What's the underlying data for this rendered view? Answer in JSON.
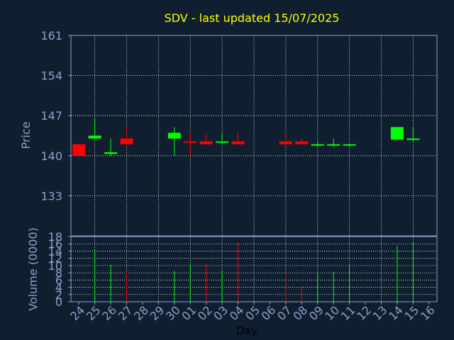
{
  "chart_data": [
    {
      "type": "candlestick",
      "title": "SDV - last updated 15/07/2025",
      "ylabel": "Price",
      "ylim": [
        126,
        161
      ],
      "y_ticks": [
        133,
        140,
        147,
        154,
        161
      ],
      "grid": true,
      "categories": [
        "24",
        "25",
        "26",
        "27",
        "28",
        "29",
        "30",
        "01",
        "02",
        "03",
        "04",
        "05",
        "06",
        "07",
        "08",
        "09",
        "10",
        "11",
        "12",
        "13",
        "14",
        "15",
        "16"
      ],
      "candles": [
        {
          "day": "24",
          "open": 142.0,
          "high": 142.0,
          "low": 140.0,
          "close": 140.0
        },
        {
          "day": "25",
          "open": 143.0,
          "high": 146.5,
          "low": 143.0,
          "close": 143.5
        },
        {
          "day": "26",
          "open": 140.3,
          "high": 143.0,
          "low": 140.0,
          "close": 140.6
        },
        {
          "day": "27",
          "open": 143.0,
          "high": 145.0,
          "low": 142.0,
          "close": 142.0
        },
        {
          "day": "30",
          "open": 143.0,
          "high": 145.0,
          "low": 140.0,
          "close": 144.0
        },
        {
          "day": "01",
          "open": 142.5,
          "high": 144.0,
          "low": 140.0,
          "close": 142.3
        },
        {
          "day": "02",
          "open": 142.5,
          "high": 144.0,
          "low": 142.0,
          "close": 142.0
        },
        {
          "day": "03",
          "open": 142.3,
          "high": 144.0,
          "low": 142.0,
          "close": 142.5
        },
        {
          "day": "04",
          "open": 142.5,
          "high": 144.0,
          "low": 142.0,
          "close": 142.0
        },
        {
          "day": "07",
          "open": 142.5,
          "high": 144.0,
          "low": 142.0,
          "close": 142.0
        },
        {
          "day": "08",
          "open": 142.5,
          "high": 143.0,
          "low": 142.0,
          "close": 142.0
        },
        {
          "day": "09",
          "open": 141.8,
          "high": 142.5,
          "low": 141.5,
          "close": 142.0
        },
        {
          "day": "10",
          "open": 141.8,
          "high": 143.0,
          "low": 141.5,
          "close": 142.0
        },
        {
          "day": "11",
          "open": 141.8,
          "high": 142.0,
          "low": 141.5,
          "close": 142.0
        },
        {
          "day": "14",
          "open": 142.8,
          "high": 145.0,
          "low": 142.8,
          "close": 145.0
        },
        {
          "day": "15",
          "open": 142.8,
          "high": 145.0,
          "low": 142.5,
          "close": 143.0
        }
      ],
      "colors": {
        "up": "#00ff00",
        "down": "#ff0000",
        "background": "#0f1f30",
        "grid": "#ffffff",
        "axis": "#8ca0c8",
        "title": "#ffff00"
      }
    },
    {
      "type": "bar",
      "xlabel": "Day",
      "ylabel": "Volume (0000)",
      "ylim": [
        0,
        18
      ],
      "y_ticks": [
        0,
        2,
        4,
        6,
        8,
        10,
        12,
        14,
        16,
        18
      ],
      "grid": true,
      "categories": [
        "24",
        "25",
        "26",
        "27",
        "28",
        "29",
        "30",
        "01",
        "02",
        "03",
        "04",
        "05",
        "06",
        "07",
        "08",
        "09",
        "10",
        "11",
        "12",
        "13",
        "14",
        "15",
        "16"
      ],
      "volumes": [
        {
          "day": "25",
          "value": 14.5,
          "direction": "up"
        },
        {
          "day": "26",
          "value": 10.2,
          "direction": "up"
        },
        {
          "day": "27",
          "value": 8.0,
          "direction": "down"
        },
        {
          "day": "30",
          "value": 8.5,
          "direction": "up"
        },
        {
          "day": "01",
          "value": 10.5,
          "direction": "up"
        },
        {
          "day": "02",
          "value": 10.0,
          "direction": "down"
        },
        {
          "day": "03",
          "value": 8.7,
          "direction": "up"
        },
        {
          "day": "04",
          "value": 16.5,
          "direction": "down"
        },
        {
          "day": "07",
          "value": 7.5,
          "direction": "down"
        },
        {
          "day": "08",
          "value": 4.3,
          "direction": "down"
        },
        {
          "day": "09",
          "value": 7.8,
          "direction": "up"
        },
        {
          "day": "10",
          "value": 8.2,
          "direction": "up"
        },
        {
          "day": "11",
          "value": 10.0,
          "direction": "up"
        },
        {
          "day": "14",
          "value": 15.5,
          "direction": "up"
        },
        {
          "day": "15",
          "value": 16.5,
          "direction": "up"
        }
      ]
    }
  ]
}
